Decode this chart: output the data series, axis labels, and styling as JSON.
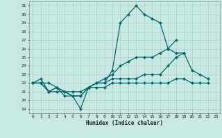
{
  "xlabel": "Humidex (Indice chaleur)",
  "xlim": [
    -0.5,
    23.5
  ],
  "ylim": [
    18.5,
    31.5
  ],
  "yticks": [
    19,
    20,
    21,
    22,
    23,
    24,
    25,
    26,
    27,
    28,
    29,
    30,
    31
  ],
  "xticks": [
    0,
    1,
    2,
    3,
    4,
    5,
    6,
    7,
    8,
    9,
    10,
    11,
    12,
    13,
    14,
    15,
    16,
    17,
    18,
    19,
    20,
    21,
    22,
    23
  ],
  "bg_color": "#c8e8e4",
  "grid_color": "#a8ccc8",
  "line_color": "#006666",
  "line1_x": [
    0,
    1,
    2,
    3,
    4,
    5,
    6,
    7,
    8,
    9,
    10,
    11,
    12,
    13,
    14,
    15,
    16,
    17,
    18,
    19
  ],
  "line1_y": [
    22,
    22,
    22,
    21.5,
    20.5,
    20.5,
    19,
    21.5,
    22,
    22,
    23.5,
    29,
    30,
    31,
    30,
    29.5,
    29,
    26,
    25.5,
    25.5
  ],
  "line2_x": [
    0,
    1,
    2,
    3,
    4,
    5,
    6,
    7,
    8,
    9,
    10,
    11,
    12,
    13,
    14,
    15,
    16,
    17,
    18,
    19,
    20,
    21,
    22
  ],
  "line2_y": [
    22,
    22.5,
    21,
    21.5,
    21,
    20.5,
    20.5,
    21.5,
    22,
    22,
    22.5,
    22.5,
    22.5,
    22.5,
    23,
    23,
    23,
    24,
    25,
    25.5,
    23.5,
    23,
    22.5
  ],
  "line3_x": [
    0,
    1,
    2,
    3,
    4,
    5,
    6,
    7,
    8,
    9,
    10,
    11,
    12,
    13,
    14,
    15,
    16,
    17,
    18
  ],
  "line3_y": [
    22,
    22,
    21,
    21.5,
    21,
    20.5,
    20.5,
    21.5,
    22,
    22.5,
    23,
    24,
    24.5,
    25,
    25,
    25,
    25.5,
    26,
    27
  ],
  "line4_x": [
    0,
    1,
    2,
    3,
    4,
    5,
    6,
    7,
    8,
    9,
    10,
    11,
    12,
    13,
    14,
    15,
    16,
    17,
    18,
    19,
    20,
    21,
    22
  ],
  "line4_y": [
    22,
    22,
    21,
    21,
    21,
    21,
    21,
    21.5,
    21.5,
    21.5,
    22,
    22,
    22,
    22,
    22,
    22,
    22,
    22,
    22.5,
    22.5,
    22,
    22,
    22
  ]
}
